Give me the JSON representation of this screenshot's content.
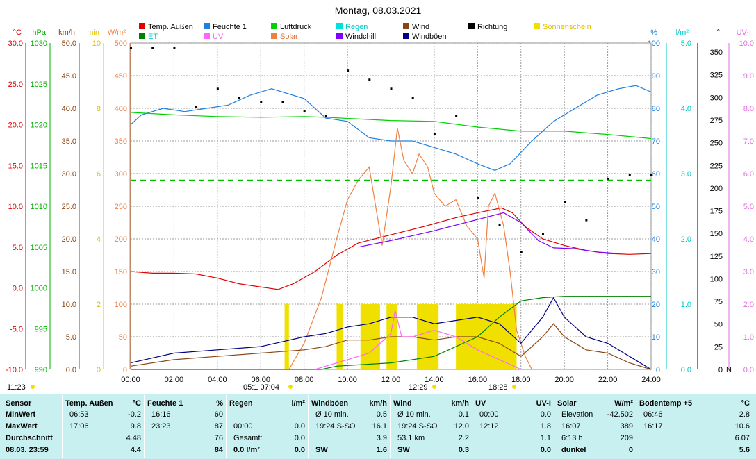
{
  "title": "Montag, 08.03.2021",
  "legend": [
    {
      "label": "Temp. Außen",
      "color": "#e00000"
    },
    {
      "label": "Feuchte 1",
      "color": "#1e7fe0"
    },
    {
      "label": "Luftdruck",
      "color": "#00d000"
    },
    {
      "label": "Regen",
      "color": "#00e0e0"
    },
    {
      "label": "Wind",
      "color": "#8b4513"
    },
    {
      "label": "Richtung",
      "color": "#000000"
    },
    {
      "label": "Sonnenschein",
      "color": "#f0e000"
    },
    {
      "label": "ET",
      "color": "#008000"
    },
    {
      "label": "UV",
      "color": "#ff66ff"
    },
    {
      "label": "Solar",
      "color": "#f08040"
    },
    {
      "label": "Windchill",
      "color": "#8000ff"
    },
    {
      "label": "Windböen",
      "color": "#000080"
    }
  ],
  "axis_units": {
    "temp": "°C",
    "hpa": "hPa",
    "kmh": "km/h",
    "min": "min",
    "wm2": "W/m²",
    "pct": "%",
    "lm2": "l/m²",
    "deg": "°",
    "uvi": "UV-I"
  },
  "axis_colors": {
    "temp": "#e00000",
    "hpa": "#00b000",
    "kmh": "#8b4513",
    "min": "#e0c000",
    "wm2": "#f08040",
    "pct": "#1e7fe0",
    "lm2": "#00c8c8",
    "deg": "#000000",
    "uvi": "#e070e0"
  },
  "axis_ticks": {
    "temp": [
      "30.0",
      "25.0",
      "20.0",
      "15.0",
      "10.0",
      "5.0",
      "0.0",
      "-5.0",
      "-10.0"
    ],
    "hpa": [
      "1030",
      "1025",
      "1020",
      "1015",
      "1010",
      "1005",
      "1000",
      "995",
      "990"
    ],
    "kmh": [
      "50.0",
      "45.0",
      "40.0",
      "35.0",
      "30.0",
      "25.0",
      "20.0",
      "15.0",
      "10.0",
      "5.0",
      "0.0"
    ],
    "min": [
      "10",
      "8",
      "6",
      "4",
      "2",
      "0"
    ],
    "wm2": [
      "500",
      "450",
      "400",
      "350",
      "300",
      "250",
      "200",
      "150",
      "100",
      "50",
      "0"
    ],
    "pct": [
      "100",
      "90",
      "80",
      "70",
      "60",
      "50",
      "40",
      "30",
      "20",
      "10",
      "0"
    ],
    "lm2": [
      "5.0",
      "4.0",
      "3.0",
      "2.0",
      "1.0",
      "0.0"
    ],
    "deg": [
      "350",
      "325",
      "300",
      "275",
      "250",
      "225",
      "200",
      "175",
      "150",
      "125",
      "100",
      "75",
      "50",
      "25",
      "0"
    ],
    "deg_n": "N",
    "uvi": [
      "10.0",
      "9.0",
      "8.0",
      "7.0",
      "6.0",
      "5.0",
      "4.0",
      "3.0",
      "2.0",
      "1.0",
      "0.0"
    ]
  },
  "time_ticks": [
    "00:00",
    "02:00",
    "04:00",
    "06:00",
    "08:00",
    "10:00",
    "12:00",
    "14:00",
    "16:00",
    "18:00",
    "20:00",
    "22:00",
    "24:00"
  ],
  "sun_marks": [
    {
      "text": "11:23"
    },
    {
      "text": "05:1 07:04"
    },
    {
      "text": "12:29"
    },
    {
      "text": "18:28"
    }
  ],
  "chart_data": {
    "type": "line",
    "title": "Montag, 08.03.2021",
    "x_unit": "hours",
    "series": [
      {
        "name": "Temp. Außen",
        "axis": "°C",
        "ylim": [
          -10,
          30
        ],
        "points": [
          [
            0,
            2.0
          ],
          [
            1,
            1.8
          ],
          [
            2,
            1.8
          ],
          [
            3,
            1.7
          ],
          [
            4,
            1.2
          ],
          [
            5,
            0.5
          ],
          [
            6.8,
            -0.2
          ],
          [
            7.5,
            0.5
          ],
          [
            8.5,
            2.0
          ],
          [
            9.5,
            4.0
          ],
          [
            10.5,
            5.5
          ],
          [
            12,
            6.5
          ],
          [
            13.5,
            7.5
          ],
          [
            15,
            8.6
          ],
          [
            16,
            9.2
          ],
          [
            17.1,
            9.8
          ],
          [
            17.6,
            9.2
          ],
          [
            18.2,
            7.5
          ],
          [
            19,
            6.0
          ],
          [
            20,
            5.2
          ],
          [
            21,
            4.6
          ],
          [
            22,
            4.2
          ],
          [
            23,
            4.1
          ],
          [
            24,
            4.2
          ]
        ]
      },
      {
        "name": "Feuchte 1",
        "axis": "%",
        "ylim": [
          0,
          100
        ],
        "points": [
          [
            0,
            75
          ],
          [
            0.5,
            78
          ],
          [
            1.5,
            80
          ],
          [
            2.5,
            79
          ],
          [
            3.5,
            80
          ],
          [
            4.5,
            81
          ],
          [
            5.5,
            84
          ],
          [
            6.5,
            86
          ],
          [
            8,
            83
          ],
          [
            9,
            77
          ],
          [
            10,
            76
          ],
          [
            11,
            71
          ],
          [
            12,
            70
          ],
          [
            13,
            70
          ],
          [
            14,
            68
          ],
          [
            15,
            66
          ],
          [
            16,
            63
          ],
          [
            16.8,
            61
          ],
          [
            17.5,
            63
          ],
          [
            18.5,
            70
          ],
          [
            19.5,
            76
          ],
          [
            20.5,
            80
          ],
          [
            21.5,
            84
          ],
          [
            22.5,
            86
          ],
          [
            23.3,
            87
          ],
          [
            24,
            85
          ]
        ]
      },
      {
        "name": "Luftdruck",
        "axis": "hPa",
        "ylim": [
          990,
          1030
        ],
        "points": [
          [
            0,
            1021.5
          ],
          [
            2,
            1021.2
          ],
          [
            4,
            1021.0
          ],
          [
            6,
            1020.9
          ],
          [
            8,
            1021.0
          ],
          [
            9,
            1020.9
          ],
          [
            12,
            1020.5
          ],
          [
            14,
            1020.4
          ],
          [
            16,
            1019.7
          ],
          [
            18,
            1019.2
          ],
          [
            20,
            1019.2
          ],
          [
            22,
            1018.8
          ],
          [
            24,
            1018.3
          ]
        ]
      },
      {
        "name": "Solar",
        "axis": "W/m²",
        "ylim": [
          0,
          500
        ],
        "points": [
          [
            7.3,
            0
          ],
          [
            8,
            40
          ],
          [
            8.8,
            110
          ],
          [
            9.5,
            200
          ],
          [
            10,
            260
          ],
          [
            10.5,
            290
          ],
          [
            11,
            310
          ],
          [
            11.2,
            270
          ],
          [
            11.6,
            190
          ],
          [
            12,
            280
          ],
          [
            12.3,
            370
          ],
          [
            12.6,
            320
          ],
          [
            13,
            300
          ],
          [
            13.3,
            330
          ],
          [
            13.7,
            310
          ],
          [
            14,
            270
          ],
          [
            14.5,
            250
          ],
          [
            15,
            260
          ],
          [
            15.5,
            220
          ],
          [
            16,
            200
          ],
          [
            16.3,
            140
          ],
          [
            16.5,
            250
          ],
          [
            16.8,
            270
          ],
          [
            17.2,
            220
          ],
          [
            17.5,
            150
          ],
          [
            17.8,
            60
          ],
          [
            18.2,
            20
          ],
          [
            18.5,
            0
          ]
        ]
      },
      {
        "name": "Windchill",
        "axis": "°C",
        "ylim": [
          -10,
          30
        ],
        "points": [
          [
            10.5,
            5.0
          ],
          [
            12,
            5.8
          ],
          [
            14,
            7.0
          ],
          [
            17.2,
            9.2
          ],
          [
            18,
            8.0
          ],
          [
            18.8,
            5.8
          ],
          [
            19.5,
            4.9
          ],
          [
            20.5,
            4.8
          ],
          [
            21.5,
            4.4
          ],
          [
            22.5,
            4.2
          ]
        ]
      },
      {
        "name": "Windböen",
        "axis": "km/h",
        "ylim": [
          0,
          50
        ],
        "points": [
          [
            0,
            1
          ],
          [
            2,
            2.5
          ],
          [
            4,
            3
          ],
          [
            6,
            3.5
          ],
          [
            8,
            5
          ],
          [
            9,
            5.5
          ],
          [
            10,
            6.5
          ],
          [
            11,
            7
          ],
          [
            12,
            8
          ],
          [
            13,
            8
          ],
          [
            14,
            7
          ],
          [
            15,
            7.5
          ],
          [
            16,
            8
          ],
          [
            17,
            7
          ],
          [
            18,
            4
          ],
          [
            19,
            8
          ],
          [
            19.5,
            11
          ],
          [
            20,
            8
          ],
          [
            21,
            5
          ],
          [
            22,
            4
          ],
          [
            23,
            2
          ],
          [
            24,
            0
          ]
        ]
      },
      {
        "name": "Wind",
        "axis": "km/h",
        "ylim": [
          0,
          50
        ],
        "points": [
          [
            0,
            0.5
          ],
          [
            2,
            1.5
          ],
          [
            4,
            2
          ],
          [
            6,
            2.5
          ],
          [
            8,
            3
          ],
          [
            9,
            3.5
          ],
          [
            10,
            4.5
          ],
          [
            11,
            4.5
          ],
          [
            12,
            5
          ],
          [
            13,
            5
          ],
          [
            14,
            4.5
          ],
          [
            15,
            5
          ],
          [
            16,
            5
          ],
          [
            17,
            4
          ],
          [
            18,
            2
          ],
          [
            19,
            5
          ],
          [
            19.5,
            7
          ],
          [
            20,
            5
          ],
          [
            21,
            3
          ],
          [
            22,
            2.5
          ],
          [
            23,
            1
          ],
          [
            24,
            0
          ]
        ]
      },
      {
        "name": "ET",
        "axis": "l/m²",
        "ylim": [
          0,
          5
        ],
        "points": [
          [
            0,
            0
          ],
          [
            8.8,
            0
          ],
          [
            9.5,
            0.05
          ],
          [
            12,
            0.1
          ],
          [
            14,
            0.2
          ],
          [
            16,
            0.5
          ],
          [
            17,
            0.8
          ],
          [
            18,
            1.05
          ],
          [
            19,
            1.1
          ],
          [
            20,
            1.12
          ],
          [
            24,
            1.12
          ]
        ]
      },
      {
        "name": "UV",
        "axis": "UV-I",
        "ylim": [
          0,
          10
        ],
        "points": [
          [
            8.5,
            0
          ],
          [
            10,
            0.3
          ],
          [
            11,
            0.5
          ],
          [
            12,
            1.1
          ],
          [
            12.2,
            1.8
          ],
          [
            12.5,
            1.0
          ],
          [
            13,
            1.0
          ],
          [
            14,
            1.2
          ],
          [
            15,
            1.0
          ],
          [
            16,
            0.6
          ],
          [
            17,
            0.3
          ],
          [
            18,
            0
          ]
        ]
      },
      {
        "name": "Richtung",
        "axis": "°",
        "ylim": [
          0,
          360
        ],
        "points": [
          [
            0,
            355
          ],
          [
            1,
            355
          ],
          [
            2,
            355
          ],
          [
            3,
            290
          ],
          [
            4,
            310
          ],
          [
            5,
            300
          ],
          [
            6,
            295
          ],
          [
            7,
            295
          ],
          [
            8,
            285
          ],
          [
            9,
            280
          ],
          [
            10,
            330
          ],
          [
            11,
            320
          ],
          [
            12,
            310
          ],
          [
            13,
            300
          ],
          [
            14,
            260
          ],
          [
            15,
            280
          ],
          [
            16,
            190
          ],
          [
            17,
            160
          ],
          [
            18,
            130
          ],
          [
            19,
            150
          ],
          [
            20,
            185
          ],
          [
            21,
            165
          ],
          [
            22,
            210
          ],
          [
            23,
            215
          ],
          [
            24,
            215
          ]
        ]
      }
    ],
    "sonnenschein_blocks": [
      [
        7.1,
        7.3
      ],
      [
        9.5,
        9.8
      ],
      [
        10.6,
        11.5
      ],
      [
        11.8,
        12.3
      ],
      [
        13.2,
        14.2
      ],
      [
        15,
        17.8
      ]
    ],
    "dashed_line": {
      "axis": "l/m²",
      "value": 2.9,
      "color": "#00c000"
    }
  },
  "panel": {
    "columns": [
      {
        "header": "Sensor",
        "rows": [
          "MinWert",
          "MaxWert",
          "Durchschnitt",
          "08.03. 23:59"
        ]
      },
      {
        "header": "Temp. Außen",
        "unit": "°C",
        "rows": [
          [
            "06:53",
            "-0.2"
          ],
          [
            "17:06",
            "9.8"
          ],
          [
            "",
            "4.48"
          ],
          [
            "",
            "4.4"
          ]
        ]
      },
      {
        "header": "Feuchte 1",
        "unit": "%",
        "rows": [
          [
            "16:16",
            "60"
          ],
          [
            "23:23",
            "87"
          ],
          [
            "",
            "76"
          ],
          [
            "",
            "84"
          ]
        ]
      },
      {
        "header": "Regen",
        "unit": "l/m²",
        "rows": [
          [
            "",
            ""
          ],
          [
            "00:00",
            "0.0"
          ],
          [
            "Gesamt:",
            "0.0"
          ],
          [
            "0.0 l/m²",
            "0.0"
          ]
        ]
      },
      {
        "header": "Windböen",
        "unit": "km/h",
        "rows": [
          [
            "Ø 10 min.",
            "0.5"
          ],
          [
            "19:24   S-SO",
            "16.1"
          ],
          [
            "",
            "3.9"
          ],
          [
            "SW",
            "1.6"
          ]
        ]
      },
      {
        "header": "Wind",
        "unit": "km/h",
        "rows": [
          [
            "Ø 10 min.",
            "0.1"
          ],
          [
            "19:24   S-SO",
            "12.0"
          ],
          [
            "53.1 km",
            "2.2"
          ],
          [
            "SW",
            "0.3"
          ]
        ]
      },
      {
        "header": "UV",
        "unit": "UV-I",
        "rows": [
          [
            "00:00",
            "0.0"
          ],
          [
            "12:12",
            "1.8"
          ],
          [
            "",
            "1.1"
          ],
          [
            "",
            "0.0"
          ]
        ]
      },
      {
        "header": "Solar",
        "unit": "W/m²",
        "rows": [
          [
            "Elevation",
            "-42.502"
          ],
          [
            "16:07",
            "389"
          ],
          [
            "6:13 h",
            "209"
          ],
          [
            "dunkel",
            "0"
          ]
        ]
      },
      {
        "header": "Bodentemp +5",
        "unit": "°C",
        "rows": [
          [
            "06:46",
            "2.8"
          ],
          [
            "16:17",
            "10.6"
          ],
          [
            "",
            "6.07"
          ],
          [
            "",
            "5.6"
          ]
        ]
      }
    ]
  }
}
